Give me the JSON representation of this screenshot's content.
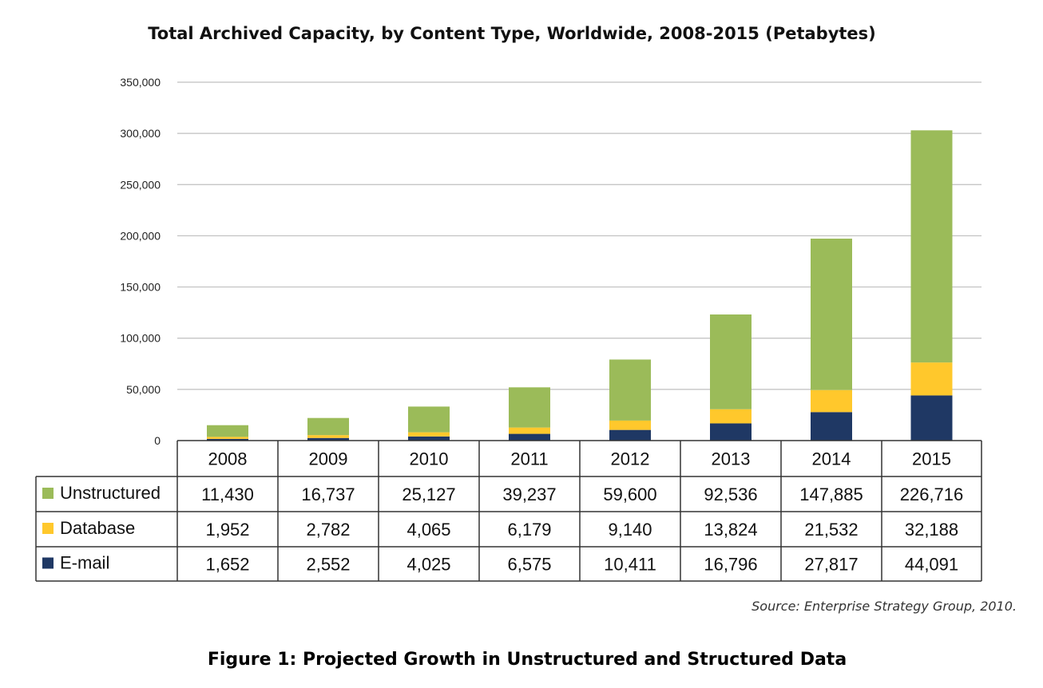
{
  "chart_data": {
    "type": "bar",
    "stacked": true,
    "title": "Total Archived Capacity, by Content Type, Worldwide, 2008-2015 (Petabytes)",
    "categories": [
      "2008",
      "2009",
      "2010",
      "2011",
      "2012",
      "2013",
      "2014",
      "2015"
    ],
    "series": [
      {
        "name": "Unstructured",
        "color": "#9bbb59",
        "values": [
          11430,
          16737,
          25127,
          39237,
          59600,
          92536,
          147885,
          226716
        ],
        "labels": [
          "11,430",
          "16,737",
          "25,127",
          "39,237",
          "59,600",
          "92,536",
          "147,885",
          "226,716"
        ]
      },
      {
        "name": "Database",
        "color": "#ffc82c",
        "values": [
          1952,
          2782,
          4065,
          6179,
          9140,
          13824,
          21532,
          32188
        ],
        "labels": [
          "1,952",
          "2,782",
          "4,065",
          "6,179",
          "9,140",
          "13,824",
          "21,532",
          "32,188"
        ]
      },
      {
        "name": "E-mail",
        "color": "#1f3864",
        "values": [
          1652,
          2552,
          4025,
          6575,
          10411,
          16796,
          27817,
          44091
        ],
        "labels": [
          "1,652",
          "2,552",
          "4,025",
          "6,575",
          "10,411",
          "16,796",
          "27,817",
          "44,091"
        ]
      }
    ],
    "stack_order": [
      "E-mail",
      "Database",
      "Unstructured"
    ],
    "ylim": [
      0,
      350000
    ],
    "yticks": [
      0,
      50000,
      100000,
      150000,
      200000,
      250000,
      300000,
      350000
    ],
    "ytick_labels": [
      "0",
      "50,000",
      "100,000",
      "150,000",
      "200,000",
      "250,000",
      "300,000",
      "350,000"
    ],
    "grid": true,
    "legend": "data table below chart"
  },
  "source": "Source: Enterprise Strategy Group, 2010.",
  "caption": "Figure 1: Projected Growth in Unstructured and Structured Data",
  "colors": {
    "gridline": "#bfbfbf",
    "table_border": "#333333"
  }
}
